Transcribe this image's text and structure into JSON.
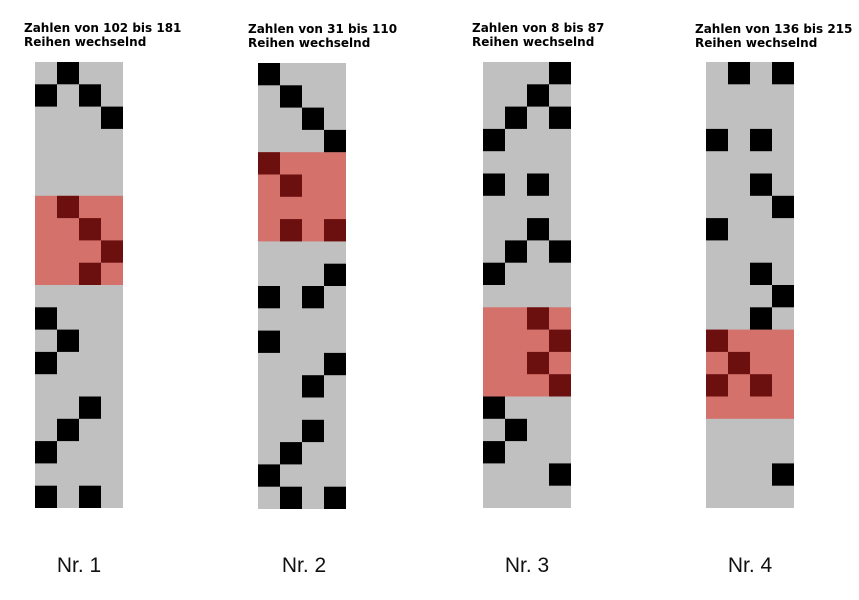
{
  "panels": [
    {
      "title": "Zahlen von 102 bis 181",
      "subtitle": "Reihen wechselnd",
      "label": "Nr. 1"
    },
    {
      "title": "Zahlen von 31 bis 110",
      "subtitle": "Reihen wechselnd",
      "label": "Nr. 2"
    },
    {
      "title": "Zahlen von 8 bis 87",
      "subtitle": "Reihen wechselnd",
      "label": "Nr. 3"
    },
    {
      "title": "Zahlen von 136 bis 215",
      "subtitle": "Reihen wechselnd",
      "label": "Nr. 4"
    }
  ]
}
